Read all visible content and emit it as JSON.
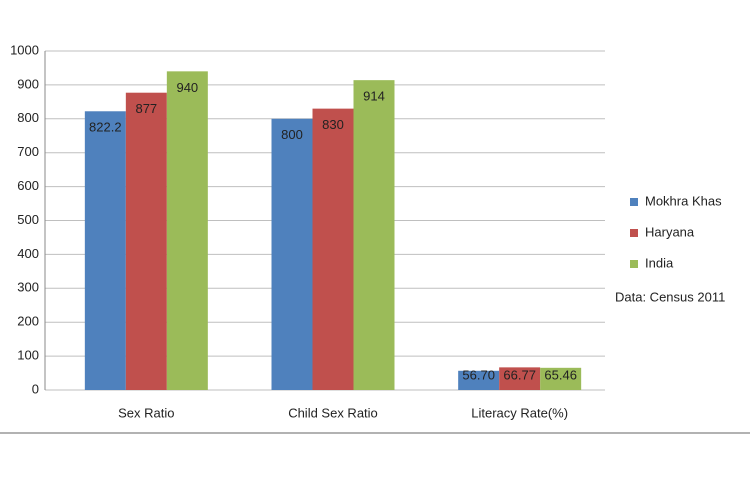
{
  "chart_data": {
    "type": "bar",
    "categories": [
      "Sex Ratio",
      "Child Sex Ratio",
      "Literacy Rate(%)"
    ],
    "series": [
      {
        "name": "Mokhra Khas",
        "color": "#4f81bd",
        "values": [
          822.2,
          800,
          56.7
        ],
        "value_labels": [
          "822.2",
          "800",
          "56.70"
        ]
      },
      {
        "name": "Haryana",
        "color": "#c0504d",
        "values": [
          877,
          830,
          66.77
        ]
      },
      {
        "name": "India",
        "color": "#9bbb59",
        "values": [
          940,
          914,
          65.46
        ]
      }
    ],
    "ylim": [
      0,
      1000
    ],
    "yticks": [
      0,
      100,
      200,
      300,
      400,
      500,
      600,
      700,
      800,
      900,
      1000
    ],
    "grid": true,
    "legend": "right",
    "annotation": "Data: Census 2011"
  }
}
